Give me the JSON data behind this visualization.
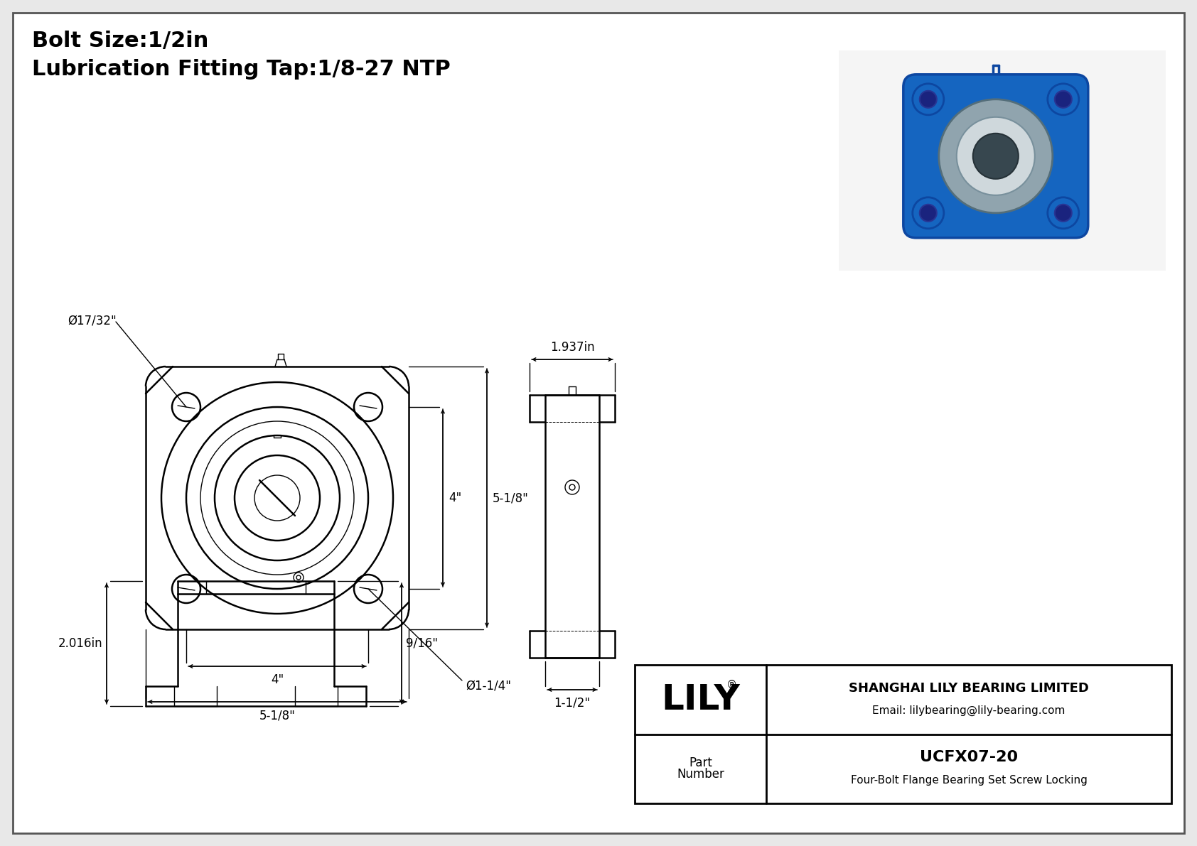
{
  "title_line1": "Bolt Size:1/2in",
  "title_line2": "Lubrication Fitting Tap:1/8-27 NTP",
  "bg_color": "#e8e8e8",
  "line_color": "#000000",
  "brand_reg": "®",
  "part_label_top": "Part",
  "part_label_bot": "Number",
  "part_number": "UCFX07-20",
  "part_desc": "Four-Bolt Flange Bearing Set Screw Locking",
  "company_name": "SHANGHAI LILY BEARING LIMITED",
  "company_email": "Email: lilybearing@lily-bearing.com",
  "dim_bolt_circle": "Ø17/32\"",
  "dim_4in_v": "4\"",
  "dim_518_v": "5-1/8\"",
  "dim_4in_h": "4\"",
  "dim_518_h": "5-1/8\"",
  "dim_114": "Ø1-1/4\"",
  "dim_side_width": "1.937in",
  "dim_side_depth": "1-1/2\"",
  "dim_front_height": "2.016in",
  "dim_front_width": "9/16\""
}
